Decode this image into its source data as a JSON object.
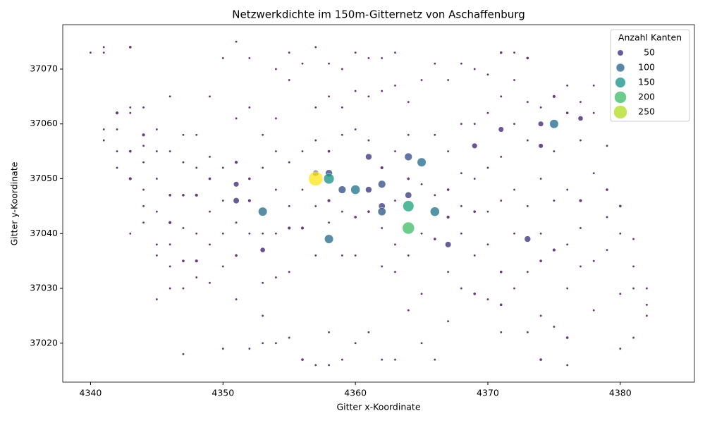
{
  "chart_data": {
    "type": "scatter",
    "title": "Netzwerkdichte im 150m-Gitternetz von Aschaffenburg",
    "xlabel": "Gitter x-Koordinate",
    "ylabel": "Gitter y-Koordinate",
    "xlim": [
      4337.9,
      4385.6
    ],
    "ylim": [
      37012.9,
      37078.1
    ],
    "xticks": [
      4340,
      4350,
      4360,
      4370,
      4380
    ],
    "yticks": [
      37020,
      37030,
      37040,
      37050,
      37060,
      37070
    ],
    "colormap": "viridis",
    "grid": false,
    "legend": {
      "title": "Anzahl Kanten",
      "corner": "upper right",
      "values": [
        50,
        100,
        150,
        200,
        250
      ]
    },
    "points": [
      [
        4340,
        37073,
        8
      ],
      [
        4341,
        37074,
        8
      ],
      [
        4341,
        37073,
        8
      ],
      [
        4343,
        37074,
        12
      ],
      [
        4341,
        37059,
        8
      ],
      [
        4341,
        37057,
        8
      ],
      [
        4342,
        37062,
        15
      ],
      [
        4342,
        37059,
        8
      ],
      [
        4342,
        37055,
        8
      ],
      [
        4342,
        37052,
        8
      ],
      [
        4343,
        37063,
        8
      ],
      [
        4343,
        37062,
        8
      ],
      [
        4343,
        37055,
        12
      ],
      [
        4343,
        37050,
        15
      ],
      [
        4343,
        37040,
        8
      ],
      [
        4344,
        37063,
        8
      ],
      [
        4344,
        37058,
        15
      ],
      [
        4344,
        37056,
        8
      ],
      [
        4344,
        37053,
        8
      ],
      [
        4344,
        37048,
        8
      ],
      [
        4344,
        37045,
        8
      ],
      [
        4344,
        37042,
        8
      ],
      [
        4345,
        37059,
        8
      ],
      [
        4345,
        37055,
        8
      ],
      [
        4345,
        37050,
        8
      ],
      [
        4345,
        37044,
        8
      ],
      [
        4345,
        37038,
        8
      ],
      [
        4345,
        37036,
        8
      ],
      [
        4345,
        37028,
        8
      ],
      [
        4346,
        37065,
        8
      ],
      [
        4346,
        37055,
        8
      ],
      [
        4346,
        37047,
        12
      ],
      [
        4346,
        37042,
        15
      ],
      [
        4346,
        37038,
        8
      ],
      [
        4346,
        37034,
        8
      ],
      [
        4346,
        37030,
        8
      ],
      [
        4347,
        37058,
        8
      ],
      [
        4347,
        37053,
        8
      ],
      [
        4347,
        37047,
        12
      ],
      [
        4347,
        37041,
        8
      ],
      [
        4347,
        37035,
        12
      ],
      [
        4347,
        37030,
        8
      ],
      [
        4347,
        37018,
        8
      ],
      [
        4348,
        37058,
        8
      ],
      [
        4348,
        37052,
        8
      ],
      [
        4348,
        37047,
        15
      ],
      [
        4348,
        37040,
        8
      ],
      [
        4348,
        37035,
        15
      ],
      [
        4348,
        37032,
        8
      ],
      [
        4349,
        37065,
        8
      ],
      [
        4349,
        37054,
        8
      ],
      [
        4349,
        37050,
        12
      ],
      [
        4349,
        37044,
        8
      ],
      [
        4349,
        37038,
        8
      ],
      [
        4349,
        37031,
        8
      ],
      [
        4350,
        37072,
        8
      ],
      [
        4350,
        37052,
        8
      ],
      [
        4350,
        37046,
        8
      ],
      [
        4350,
        37040,
        8
      ],
      [
        4350,
        37034,
        8
      ],
      [
        4350,
        37019,
        8
      ],
      [
        4351,
        37075,
        8
      ],
      [
        4351,
        37061,
        8
      ],
      [
        4351,
        37053,
        15
      ],
      [
        4351,
        37042,
        8
      ],
      [
        4351,
        37036,
        12
      ],
      [
        4351,
        37028,
        8
      ],
      [
        4352,
        37072,
        8
      ],
      [
        4352,
        37063,
        8
      ],
      [
        4352,
        37050,
        12
      ],
      [
        4352,
        37046,
        15
      ],
      [
        4352,
        37040,
        8
      ],
      [
        4352,
        37019,
        8
      ],
      [
        4353,
        37058,
        8
      ],
      [
        4353,
        37052,
        8
      ],
      [
        4353,
        37040,
        8
      ],
      [
        4353,
        37031,
        8
      ],
      [
        4353,
        37025,
        8
      ],
      [
        4353,
        37020,
        8
      ],
      [
        4354,
        37070,
        8
      ],
      [
        4354,
        37061,
        8
      ],
      [
        4354,
        37055,
        8
      ],
      [
        4354,
        37048,
        8
      ],
      [
        4354,
        37040,
        8
      ],
      [
        4354,
        37032,
        8
      ],
      [
        4354,
        37020,
        8
      ],
      [
        4355,
        37073,
        8
      ],
      [
        4355,
        37068,
        8
      ],
      [
        4355,
        37053,
        8
      ],
      [
        4355,
        37045,
        8
      ],
      [
        4355,
        37041,
        15
      ],
      [
        4355,
        37033,
        8
      ],
      [
        4355,
        37021,
        8
      ],
      [
        4356,
        37071,
        8
      ],
      [
        4356,
        37055,
        8
      ],
      [
        4356,
        37048,
        8
      ],
      [
        4356,
        37041,
        15
      ],
      [
        4356,
        37017,
        12
      ],
      [
        4357,
        37074,
        8
      ],
      [
        4357,
        37063,
        8
      ],
      [
        4357,
        37057,
        8
      ],
      [
        4357,
        37045,
        8
      ],
      [
        4357,
        37036,
        8
      ],
      [
        4357,
        37016,
        8
      ],
      [
        4358,
        37071,
        8
      ],
      [
        4358,
        37065,
        8
      ],
      [
        4358,
        37055,
        12
      ],
      [
        4358,
        37046,
        15
      ],
      [
        4358,
        37042,
        8
      ],
      [
        4358,
        37022,
        8
      ],
      [
        4358,
        37016,
        8
      ],
      [
        4359,
        37070,
        8
      ],
      [
        4359,
        37063,
        8
      ],
      [
        4359,
        37058,
        8
      ],
      [
        4359,
        37044,
        8
      ],
      [
        4359,
        37036,
        8
      ],
      [
        4359,
        37017,
        8
      ],
      [
        4360,
        37073,
        8
      ],
      [
        4360,
        37066,
        8
      ],
      [
        4360,
        37059,
        8
      ],
      [
        4360,
        37043,
        12
      ],
      [
        4360,
        37036,
        8
      ],
      [
        4360,
        37020,
        8
      ],
      [
        4361,
        37072,
        8
      ],
      [
        4361,
        37065,
        8
      ],
      [
        4361,
        37057,
        8
      ],
      [
        4361,
        37044,
        12
      ],
      [
        4361,
        37022,
        8
      ],
      [
        4362,
        37072,
        8
      ],
      [
        4362,
        37066,
        8
      ],
      [
        4362,
        37052,
        15
      ],
      [
        4362,
        37041,
        8
      ],
      [
        4362,
        37034,
        8
      ],
      [
        4362,
        37017,
        8
      ],
      [
        4363,
        37073,
        8
      ],
      [
        4363,
        37067,
        8
      ],
      [
        4363,
        37055,
        8
      ],
      [
        4363,
        37046,
        8
      ],
      [
        4363,
        37038,
        8
      ],
      [
        4363,
        37033,
        8
      ],
      [
        4363,
        37017,
        8
      ],
      [
        4364,
        37064,
        8
      ],
      [
        4364,
        37058,
        8
      ],
      [
        4364,
        37050,
        12
      ],
      [
        4364,
        37036,
        8
      ],
      [
        4364,
        37026,
        8
      ],
      [
        4365,
        37068,
        8
      ],
      [
        4365,
        37049,
        8
      ],
      [
        4365,
        37040,
        8
      ],
      [
        4365,
        37029,
        8
      ],
      [
        4365,
        37020,
        8
      ],
      [
        4366,
        37071,
        8
      ],
      [
        4366,
        37058,
        8
      ],
      [
        4366,
        37047,
        8
      ],
      [
        4366,
        37039,
        12
      ],
      [
        4366,
        37017,
        8
      ],
      [
        4367,
        37068,
        8
      ],
      [
        4367,
        37055,
        8
      ],
      [
        4367,
        37048,
        12
      ],
      [
        4367,
        37043,
        15
      ],
      [
        4367,
        37033,
        8
      ],
      [
        4367,
        37024,
        8
      ],
      [
        4368,
        37071,
        8
      ],
      [
        4368,
        37060,
        8
      ],
      [
        4368,
        37051,
        8
      ],
      [
        4368,
        37045,
        8
      ],
      [
        4368,
        37040,
        8
      ],
      [
        4368,
        37030,
        8
      ],
      [
        4369,
        37070,
        8
      ],
      [
        4369,
        37060,
        8
      ],
      [
        4369,
        37050,
        8
      ],
      [
        4369,
        37044,
        12
      ],
      [
        4369,
        37036,
        8
      ],
      [
        4369,
        37029,
        12
      ],
      [
        4370,
        37069,
        8
      ],
      [
        4370,
        37062,
        8
      ],
      [
        4370,
        37052,
        8
      ],
      [
        4370,
        37044,
        8
      ],
      [
        4370,
        37038,
        8
      ],
      [
        4370,
        37028,
        8
      ],
      [
        4371,
        37073,
        12
      ],
      [
        4371,
        37065,
        8
      ],
      [
        4371,
        37054,
        8
      ],
      [
        4371,
        37046,
        8
      ],
      [
        4371,
        37033,
        12
      ],
      [
        4371,
        37027,
        12
      ],
      [
        4371,
        37022,
        8
      ],
      [
        4372,
        37073,
        8
      ],
      [
        4372,
        37068,
        8
      ],
      [
        4372,
        37060,
        8
      ],
      [
        4372,
        37048,
        8
      ],
      [
        4372,
        37040,
        8
      ],
      [
        4372,
        37030,
        8
      ],
      [
        4373,
        37072,
        12
      ],
      [
        4373,
        37064,
        8
      ],
      [
        4373,
        37057,
        8
      ],
      [
        4373,
        37045,
        8
      ],
      [
        4373,
        37033,
        8
      ],
      [
        4373,
        37022,
        8
      ],
      [
        4374,
        37063,
        8
      ],
      [
        4374,
        37050,
        8
      ],
      [
        4374,
        37040,
        8
      ],
      [
        4374,
        37035,
        12
      ],
      [
        4374,
        37025,
        8
      ],
      [
        4374,
        37017,
        12
      ],
      [
        4375,
        37065,
        15
      ],
      [
        4375,
        37055,
        8
      ],
      [
        4375,
        37046,
        8
      ],
      [
        4375,
        37037,
        15
      ],
      [
        4375,
        37023,
        8
      ],
      [
        4376,
        37067,
        8
      ],
      [
        4376,
        37062,
        12
      ],
      [
        4376,
        37048,
        8
      ],
      [
        4376,
        37038,
        8
      ],
      [
        4376,
        37030,
        8
      ],
      [
        4376,
        37021,
        12
      ],
      [
        4376,
        37016,
        8
      ],
      [
        4377,
        37064,
        8
      ],
      [
        4377,
        37057,
        8
      ],
      [
        4377,
        37046,
        15
      ],
      [
        4377,
        37041,
        8
      ],
      [
        4377,
        37034,
        8
      ],
      [
        4378,
        37067,
        8
      ],
      [
        4378,
        37062,
        8
      ],
      [
        4378,
        37051,
        8
      ],
      [
        4378,
        37035,
        8
      ],
      [
        4378,
        37026,
        8
      ],
      [
        4379,
        37056,
        8
      ],
      [
        4379,
        37048,
        12
      ],
      [
        4379,
        37043,
        8
      ],
      [
        4379,
        37037,
        8
      ],
      [
        4380,
        37045,
        12
      ],
      [
        4380,
        37040,
        8
      ],
      [
        4380,
        37029,
        8
      ],
      [
        4380,
        37019,
        8
      ],
      [
        4381,
        37039,
        8
      ],
      [
        4381,
        37034,
        8
      ],
      [
        4381,
        37030,
        8
      ],
      [
        4381,
        37021,
        8
      ],
      [
        4382,
        37030,
        8
      ],
      [
        4382,
        37027,
        8
      ],
      [
        4382,
        37025,
        8
      ],
      [
        4374,
        37056,
        30
      ],
      [
        4353,
        37037,
        35
      ],
      [
        4377,
        37061,
        35
      ],
      [
        4371,
        37059,
        40
      ],
      [
        4369,
        37056,
        40
      ],
      [
        4374,
        37060,
        40
      ],
      [
        4351,
        37049,
        40
      ],
      [
        4357,
        37051,
        50
      ],
      [
        4351,
        37046,
        50
      ],
      [
        4367,
        37038,
        50
      ],
      [
        4361,
        37054,
        55
      ],
      [
        4361,
        37048,
        55
      ],
      [
        4373,
        37039,
        55
      ],
      [
        4364,
        37047,
        60
      ],
      [
        4362,
        37045,
        60
      ],
      [
        4358,
        37051,
        70
      ],
      [
        4362,
        37049,
        80
      ],
      [
        4364,
        37054,
        80
      ],
      [
        4359,
        37048,
        80
      ],
      [
        4362,
        37044,
        90
      ],
      [
        4353,
        37044,
        110
      ],
      [
        4358,
        37039,
        110
      ],
      [
        4365,
        37053,
        110
      ],
      [
        4375,
        37060,
        110
      ],
      [
        4360,
        37048,
        120
      ],
      [
        4366,
        37044,
        120
      ],
      [
        4358,
        37050,
        150
      ],
      [
        4364,
        37045,
        170
      ],
      [
        4364,
        37041,
        200
      ],
      [
        4357,
        37050,
        280
      ]
    ]
  }
}
